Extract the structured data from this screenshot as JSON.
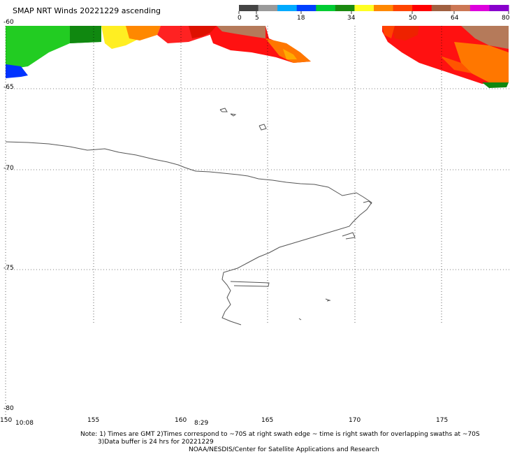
{
  "title": "SMAP NRT Winds 20221229 ascending",
  "colorbar": {
    "labels": [
      "0",
      "5",
      "18",
      "34",
      "50",
      "64",
      "80"
    ],
    "colors": [
      "#444444",
      "#9a9a9a",
      "#00aaff",
      "#0040ff",
      "#00cc33",
      "#1a8a10",
      "#ffff22",
      "#ff8800",
      "#ff4400",
      "#ff0000",
      "#a06040",
      "#cc7755",
      "#dd00dd",
      "#8800cc"
    ]
  },
  "axes": {
    "lat_labels": [
      "-60",
      "-65",
      "-70",
      "-75",
      "-80"
    ],
    "lon_labels": [
      "150",
      "155",
      "160",
      "165",
      "170",
      "175"
    ]
  },
  "times": [
    "10:08",
    "8:29"
  ],
  "notes": {
    "line1": "Note: 1) Times are GMT 2)Times correspond to ~70S at right swath edge ~ time is right swath for overlapping swaths at ~70S",
    "line2": "3)Data buffer is 24 hrs for 20221229",
    "line3": "NOAA/NESDIS/Center for Satellite Applications and Research"
  }
}
